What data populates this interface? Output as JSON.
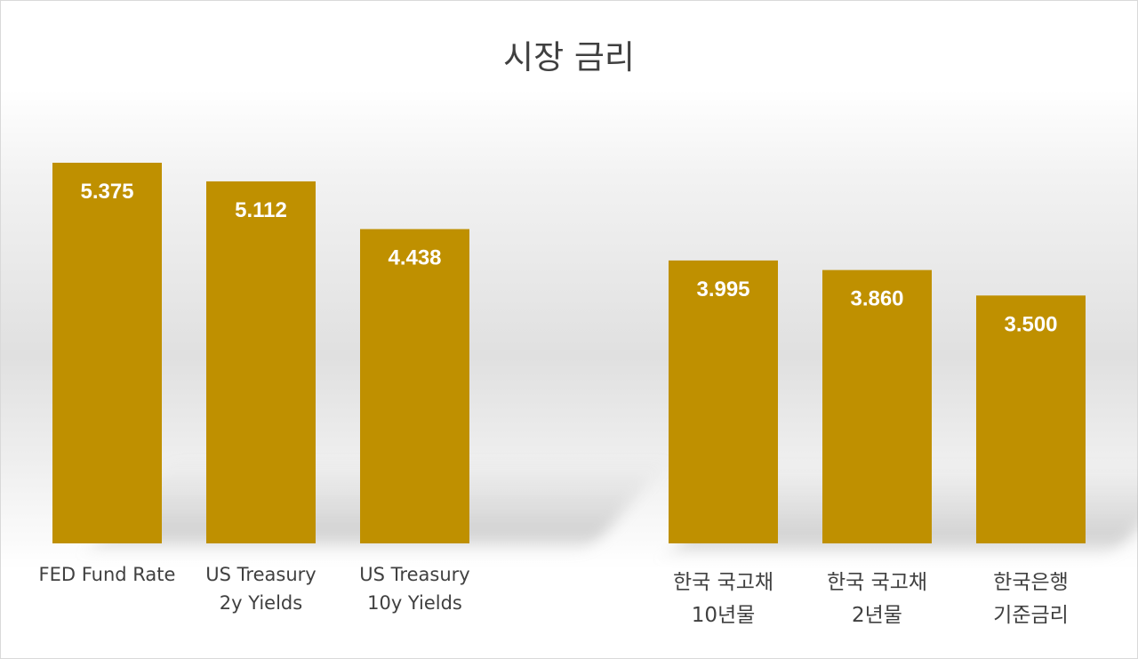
{
  "chart_data": {
    "type": "bar",
    "title": "시장 금리",
    "categories": [
      "FED Fund Rate",
      "US Treasury\n2y Yields",
      "US Treasury\n10y Yields",
      "한국 국고채\n10년물",
      "한국 국고채\n2년물",
      "한국은행\n기준금리"
    ],
    "values": [
      5.375,
      5.112,
      4.438,
      3.995,
      3.86,
      3.5
    ],
    "value_labels": [
      "5.375",
      "5.112",
      "4.438",
      "3.995",
      "3.860",
      "3.500"
    ],
    "grid": false,
    "legend": "none",
    "bar_color": "#bf9000"
  },
  "colors": {
    "bar": "#bf9000",
    "value_label": "#ffffff",
    "axis_label": "#404040",
    "title": "#404040"
  }
}
